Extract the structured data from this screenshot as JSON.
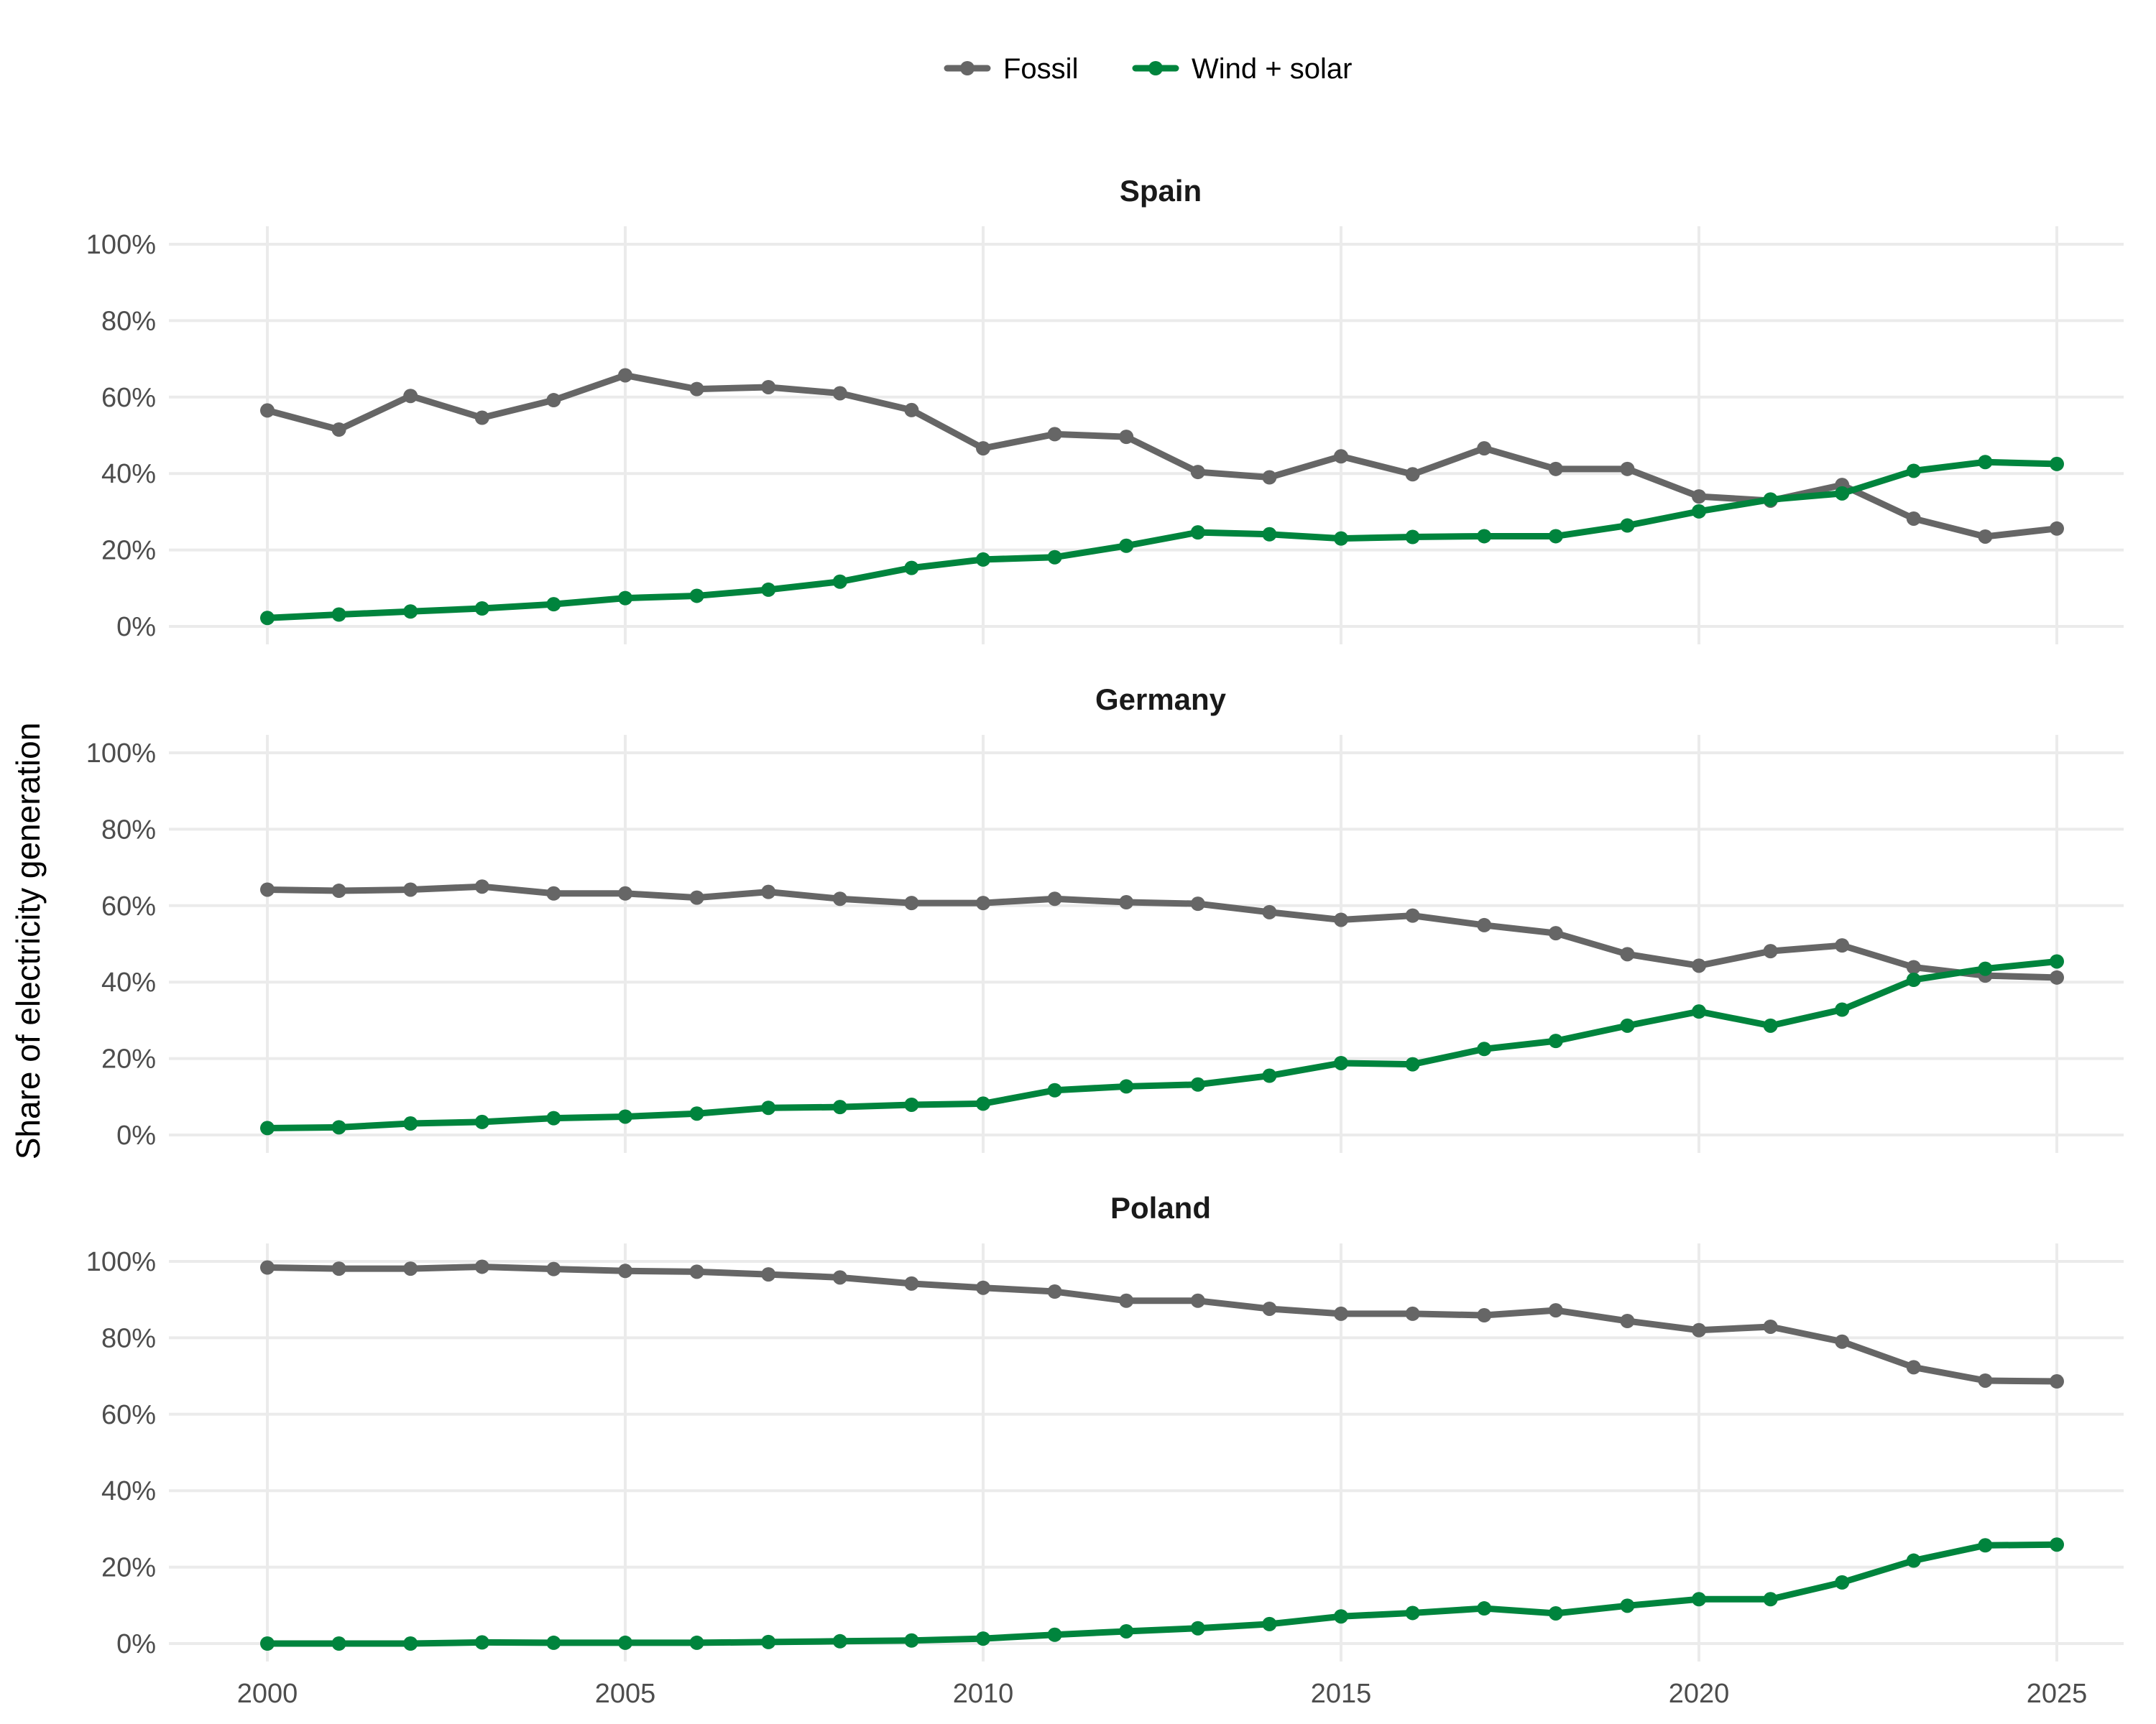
{
  "chart_data": {
    "type": "line",
    "ylabel": "Share of electricity generation",
    "ylim": [
      0,
      100
    ],
    "y_ticks": [
      "0%",
      "20%",
      "40%",
      "60%",
      "80%",
      "100%"
    ],
    "y_tick_values": [
      0,
      20,
      40,
      60,
      80,
      100
    ],
    "x_ticks": [
      "2000",
      "2005",
      "2010",
      "2015",
      "2020",
      "2025"
    ],
    "x_tick_values": [
      2000,
      2005,
      2010,
      2015,
      2020,
      2025
    ],
    "xlim": [
      2000,
      2025
    ],
    "grid": true,
    "legend_position": "top",
    "x": [
      2000,
      2001,
      2002,
      2003,
      2004,
      2005,
      2006,
      2007,
      2008,
      2009,
      2010,
      2011,
      2012,
      2013,
      2014,
      2015,
      2016,
      2017,
      2018,
      2019,
      2020,
      2021,
      2022,
      2023,
      2024,
      2025
    ],
    "series_colors": {
      "Fossil": "#666666",
      "Wind + solar": "#00843d"
    },
    "legend": [
      "Fossil",
      "Wind + solar"
    ],
    "panels": [
      {
        "title": "Spain",
        "series": [
          {
            "name": "Fossil",
            "values": [
              56.5,
              51.5,
              60.3,
              54.6,
              59.2,
              65.7,
              62.1,
              62.6,
              61.0,
              56.6,
              46.6,
              50.3,
              49.6,
              40.4,
              39.0,
              44.5,
              39.8,
              46.6,
              41.2,
              41.2,
              34.0,
              32.9,
              37.0,
              28.2,
              23.5,
              25.6
            ]
          },
          {
            "name": "Wind + solar",
            "values": [
              2.2,
              3.1,
              3.9,
              4.7,
              5.8,
              7.4,
              8.0,
              9.6,
              11.7,
              15.3,
              17.5,
              18.1,
              21.1,
              24.6,
              24.1,
              23.0,
              23.4,
              23.6,
              23.6,
              26.4,
              30.1,
              33.2,
              34.8,
              40.7,
              43.0,
              42.5
            ]
          }
        ]
      },
      {
        "title": "Germany",
        "series": [
          {
            "name": "Fossil",
            "values": [
              64.2,
              63.9,
              64.2,
              65.0,
              63.2,
              63.2,
              62.1,
              63.6,
              61.8,
              60.7,
              60.7,
              61.8,
              60.9,
              60.5,
              58.3,
              56.3,
              57.4,
              54.9,
              52.8,
              47.3,
              44.3,
              48.1,
              49.6,
              43.9,
              41.7,
              41.2
            ]
          },
          {
            "name": "Wind + solar",
            "values": [
              1.8,
              2.0,
              3.0,
              3.4,
              4.4,
              4.8,
              5.6,
              7.1,
              7.3,
              7.9,
              8.2,
              11.7,
              12.7,
              13.2,
              15.5,
              18.8,
              18.5,
              22.5,
              24.6,
              28.6,
              32.3,
              28.6,
              32.8,
              40.6,
              43.5,
              45.4
            ]
          }
        ]
      },
      {
        "title": "Poland",
        "series": [
          {
            "name": "Fossil",
            "values": [
              98.4,
              98.1,
              98.1,
              98.6,
              98.0,
              97.5,
              97.3,
              96.6,
              95.8,
              94.2,
              93.1,
              92.1,
              89.7,
              89.7,
              87.6,
              86.3,
              86.3,
              85.9,
              87.2,
              84.4,
              82.0,
              82.9,
              79.0,
              72.3,
              68.8,
              68.6
            ]
          },
          {
            "name": "Wind + solar",
            "values": [
              0.0,
              0.0,
              0.0,
              0.3,
              0.2,
              0.2,
              0.2,
              0.4,
              0.6,
              0.8,
              1.3,
              2.3,
              3.2,
              4.0,
              5.1,
              7.1,
              8.0,
              9.2,
              7.9,
              9.9,
              11.6,
              11.6,
              16.0,
              21.7,
              25.7,
              25.9
            ]
          }
        ]
      }
    ]
  }
}
